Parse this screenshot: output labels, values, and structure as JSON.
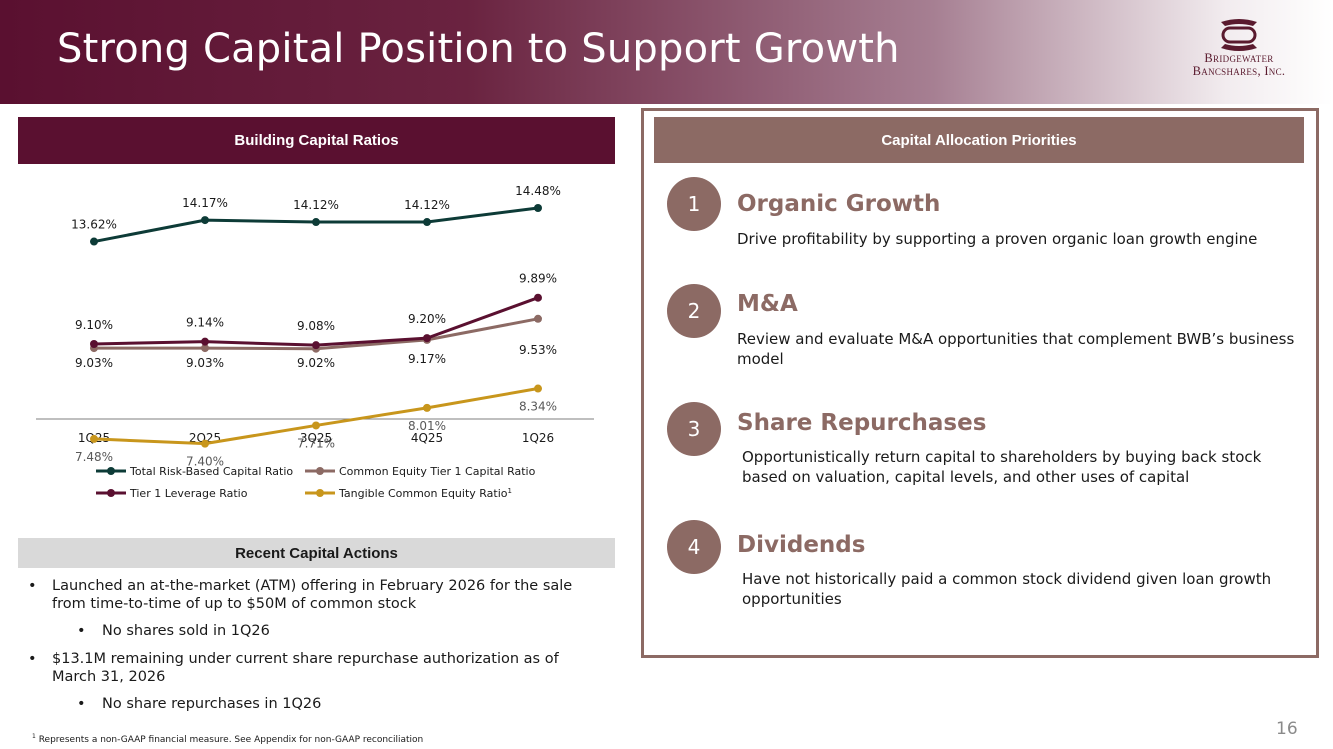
{
  "header": {
    "title": "Strong Capital Position to Support Growth",
    "logo_line1": "Bridgewater",
    "logo_line2": "Bancshares, Inc."
  },
  "left": {
    "chart_title": "Building Capital Ratios",
    "actions_title": "Recent Capital Actions",
    "bullets": {
      "b1": "Launched an at-the-market (ATM) offering in February 2026 for the sale from time-to-time of up to $50M of common stock",
      "b1_sub": "No shares sold in 1Q26",
      "b2": "$13.1M remaining under current share repurchase authorization as of March 31, 2026",
      "b2_sub": "No share repurchases in 1Q26"
    }
  },
  "footnote": {
    "marker": "1",
    "text": "Represents a non-GAAP financial measure. See Appendix for non-GAAP reconciliation"
  },
  "page_number": "16",
  "right": {
    "title": "Capital Allocation Priorities",
    "priorities": [
      {
        "num": "1",
        "title": "Organic Growth",
        "desc": "Drive profitability by supporting a proven organic loan growth engine"
      },
      {
        "num": "2",
        "title": "M&A",
        "desc": "Review and evaluate M&A opportunities that complement BWB’s business model"
      },
      {
        "num": "3",
        "title": "Share Repurchases",
        "desc": "Opportunistically return capital to shareholders by buying back stock based on valuation, capital levels, and other uses of capital"
      },
      {
        "num": "4",
        "title": "Dividends",
        "desc": "Have not historically paid a common stock dividend given loan growth opportunities"
      }
    ]
  },
  "chart_data": {
    "type": "line",
    "title": "Building Capital Ratios",
    "categories": [
      "1Q25",
      "2Q25",
      "3Q25",
      "4Q25",
      "1Q26"
    ],
    "series": [
      {
        "name": "Total Risk-Based Capital Ratio",
        "values": [
          13.62,
          14.17,
          14.12,
          14.12,
          14.48
        ],
        "labels": [
          "13.62%",
          "14.17%",
          "14.12%",
          "14.12%",
          "14.48%"
        ],
        "color": "#0d3b37"
      },
      {
        "name": "Common Equity Tier 1 Capital Ratio",
        "values": [
          9.03,
          9.03,
          9.02,
          9.17,
          9.53
        ],
        "labels": [
          "9.03%",
          "9.03%",
          "9.02%",
          "9.17%",
          "9.53%"
        ],
        "color": "#8c6a64"
      },
      {
        "name": "Tier 1 Leverage Ratio",
        "values": [
          9.1,
          9.14,
          9.08,
          9.2,
          9.89
        ],
        "labels": [
          "9.10%",
          "9.14%",
          "9.08%",
          "9.20%",
          "9.89%"
        ],
        "color": "#5a1030"
      },
      {
        "name": "Tangible Common Equity Ratio",
        "superscript": "1",
        "values": [
          7.48,
          7.4,
          7.71,
          8.01,
          8.34
        ],
        "labels": [
          "7.48%",
          "7.40%",
          "7.71%",
          "8.01%",
          "8.34%"
        ],
        "color": "#c8961c"
      }
    ],
    "grid": false,
    "legend_position": "bottom"
  }
}
